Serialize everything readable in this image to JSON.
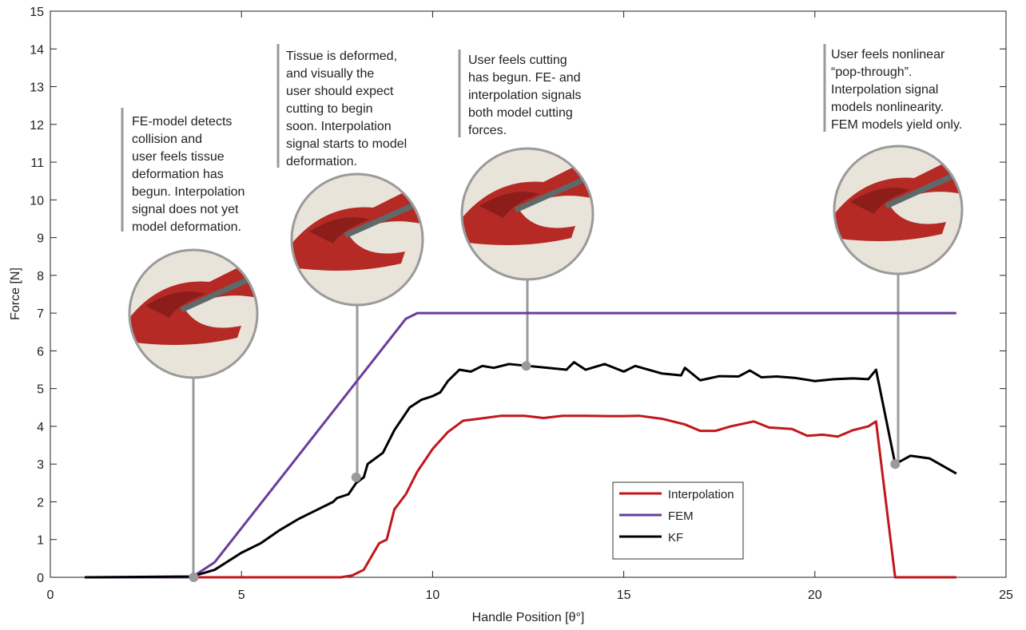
{
  "chart_data": {
    "type": "line",
    "xlabel": "Handle Position [θ°]",
    "ylabel": "Force [N]",
    "xlim": [
      0,
      25
    ],
    "xticks": [
      0,
      5,
      10,
      15,
      20,
      25
    ],
    "ylim": [
      0,
      15
    ],
    "yticks": [
      0,
      1,
      2,
      3,
      4,
      5,
      6,
      7,
      8,
      9,
      10,
      11,
      12,
      13,
      14,
      15
    ],
    "grid": false,
    "legend": "lower right",
    "series": [
      {
        "name": "Interpolation",
        "color": "#c0171b",
        "x": [
          0.9,
          7.6,
          7.9,
          8.2,
          8.6,
          8.8,
          9.0,
          9.3,
          9.6,
          10.0,
          10.4,
          10.8,
          11.2,
          11.8,
          12.4,
          12.9,
          13.4,
          14.0,
          14.6,
          15.0,
          15.4,
          16.0,
          16.6,
          17.0,
          17.4,
          17.8,
          18.4,
          18.8,
          19.4,
          19.8,
          20.2,
          20.6,
          21.0,
          21.4,
          21.6,
          22.1,
          23.7
        ],
        "values": [
          0,
          0,
          0.05,
          0.2,
          0.9,
          1.0,
          1.8,
          2.2,
          2.8,
          3.4,
          3.85,
          4.15,
          4.2,
          4.28,
          4.28,
          4.22,
          4.28,
          4.28,
          4.27,
          4.27,
          4.28,
          4.2,
          4.05,
          3.88,
          3.88,
          4.0,
          4.13,
          3.97,
          3.93,
          3.75,
          3.78,
          3.73,
          3.9,
          4.0,
          4.13,
          0,
          0
        ]
      },
      {
        "name": "FEM",
        "color": "#6a3d9a",
        "x": [
          0.9,
          3.7,
          4.3,
          9.3,
          9.6,
          23.7
        ],
        "values": [
          0,
          0,
          0.4,
          6.85,
          7,
          7
        ]
      },
      {
        "name": "KF",
        "color": "#000000",
        "x": [
          0.9,
          3.7,
          4.3,
          5.0,
          5.5,
          6.0,
          6.5,
          7.0,
          7.4,
          7.5,
          7.8,
          8.0,
          8.2,
          8.3,
          8.7,
          9.0,
          9.4,
          9.7,
          10.0,
          10.2,
          10.4,
          10.7,
          11.0,
          11.3,
          11.6,
          12.0,
          12.5,
          13.0,
          13.5,
          13.7,
          14.0,
          14.5,
          15.0,
          15.3,
          16.0,
          16.5,
          16.6,
          17.0,
          17.5,
          18.0,
          18.3,
          18.6,
          19.0,
          19.5,
          20.0,
          20.5,
          21.0,
          21.4,
          21.6,
          22.1,
          22.5,
          23.0,
          23.7
        ],
        "values": [
          0,
          0.02,
          0.2,
          0.65,
          0.9,
          1.25,
          1.55,
          1.8,
          2.0,
          2.1,
          2.2,
          2.5,
          2.65,
          3.0,
          3.3,
          3.9,
          4.5,
          4.7,
          4.8,
          4.9,
          5.2,
          5.5,
          5.45,
          5.6,
          5.55,
          5.65,
          5.6,
          5.55,
          5.5,
          5.7,
          5.5,
          5.65,
          5.45,
          5.6,
          5.4,
          5.35,
          5.55,
          5.22,
          5.33,
          5.32,
          5.48,
          5.3,
          5.32,
          5.28,
          5.2,
          5.25,
          5.27,
          5.25,
          5.5,
          3.0,
          3.22,
          3.15,
          2.75
        ]
      }
    ],
    "annotations": [
      {
        "x": 3.75,
        "y": 0,
        "text": [
          "FE-model detects",
          "collision and",
          "user feels tissue",
          "deformation has",
          "begun. Interpolation",
          "signal does not yet",
          "model deformation."
        ]
      },
      {
        "x": 8.0,
        "y": 2.65,
        "text": [
          "Tissue is deformed,",
          "and visually the",
          "user should expect",
          "cutting to begin",
          "soon. Interpolation",
          "signal starts to model",
          "deformation."
        ]
      },
      {
        "x": 12.45,
        "y": 5.6,
        "text": [
          "User feels cutting",
          "has begun. FE- and",
          "interpolation signals",
          "both model cutting",
          "forces."
        ]
      },
      {
        "x": 22.1,
        "y": 3.0,
        "text": [
          "User feels nonlinear",
          "“pop-through”.",
          "Interpolation signal",
          "models nonlinearity.",
          "FEM models yield only."
        ]
      }
    ]
  }
}
